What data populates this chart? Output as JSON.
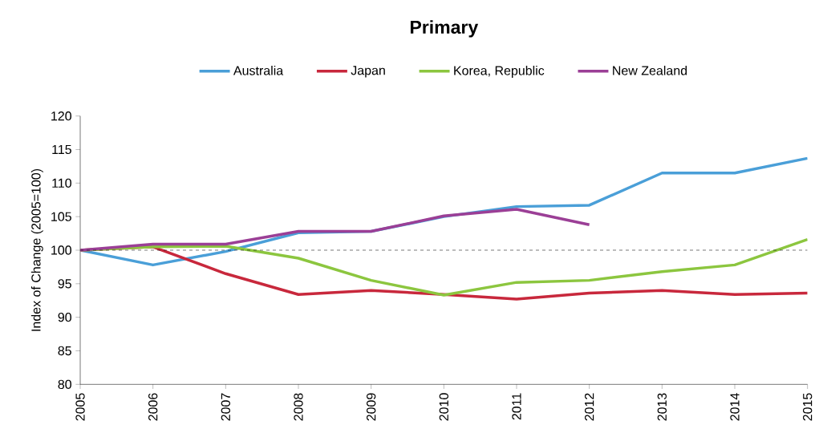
{
  "chart_data": {
    "type": "line",
    "title": "Primary",
    "ylabel": "Index of Change (2005=100)",
    "x": [
      2005,
      2006,
      2007,
      2008,
      2009,
      2010,
      2011,
      2012,
      2013,
      2014,
      2015
    ],
    "series": [
      {
        "name": "Australia",
        "color": "#4a9fd8",
        "values": [
          100,
          97.8,
          99.8,
          102.6,
          102.8,
          105,
          106.5,
          106.7,
          111.5,
          111.5,
          113.7
        ]
      },
      {
        "name": "Japan",
        "color": "#c8283c",
        "values": [
          100,
          100.5,
          96.5,
          93.4,
          94,
          93.4,
          92.7,
          93.6,
          94,
          93.4,
          93.6
        ]
      },
      {
        "name": "Korea, Republic",
        "color": "#8cc63f",
        "values": [
          100,
          100.5,
          100.6,
          98.8,
          95.5,
          93.3,
          95.2,
          95.5,
          96.8,
          97.8,
          101.6
        ]
      },
      {
        "name": "New Zealand",
        "color": "#9b3f96",
        "values": [
          100,
          100.9,
          100.9,
          102.8,
          102.8,
          105.1,
          106.1,
          103.8,
          null,
          null,
          null
        ]
      }
    ],
    "xlim": [
      2005,
      2015
    ],
    "xticks": [
      2005,
      2006,
      2007,
      2008,
      2009,
      2010,
      2011,
      2012,
      2013,
      2014,
      2015
    ],
    "ylim": [
      80,
      120
    ],
    "yticks": [
      80,
      85,
      90,
      95,
      100,
      105,
      110,
      115,
      120
    ],
    "ref_lines": [
      {
        "axis": "y",
        "value": 100,
        "color": "#000000",
        "line_style": "dashed"
      }
    ],
    "legend": "top",
    "grid": false,
    "marker": "none",
    "line_style": "solid"
  }
}
